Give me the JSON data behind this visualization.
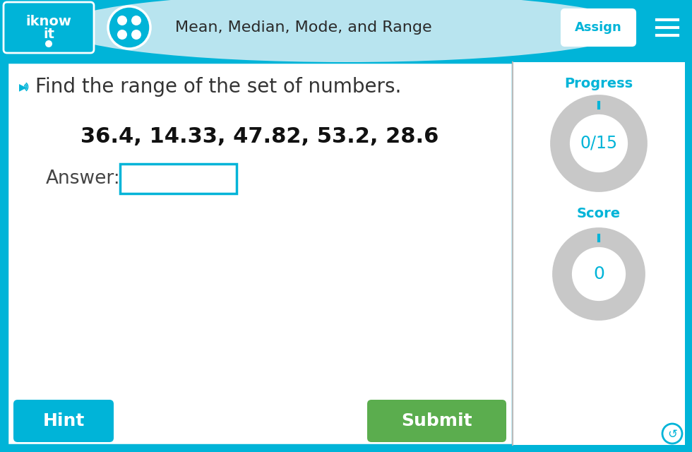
{
  "header_bg_color": "#00B4D8",
  "header_light_bg": "#B8E4EF",
  "header_title": "Mean, Median, Mode, and Range",
  "assign_btn_text": "Assign",
  "main_bg": "#ffffff",
  "outer_border_color": "#00B4D8",
  "divider_color": "#BBBBBB",
  "question_text": "Find the range of the set of numbers.",
  "numbers_text": "36.4, 14.33, 47.82, 53.2, 28.6",
  "answer_label": "Answer:",
  "hint_btn_text": "Hint",
  "hint_btn_color": "#00B4D8",
  "submit_btn_text": "Submit",
  "submit_btn_color": "#5BAD4E",
  "progress_label": "Progress",
  "progress_text": "0/15",
  "score_label": "Score",
  "score_text": "0",
  "circle_color": "#C8C8C8",
  "circle_text_color": "#00B4D8",
  "input_box_color": "#00B4D8",
  "speaker_color": "#00B4D8",
  "question_text_color": "#333333",
  "numbers_text_color": "#111111",
  "answer_label_color": "#444444",
  "fig_w": 9.8,
  "fig_h": 6.4,
  "dpi": 100
}
